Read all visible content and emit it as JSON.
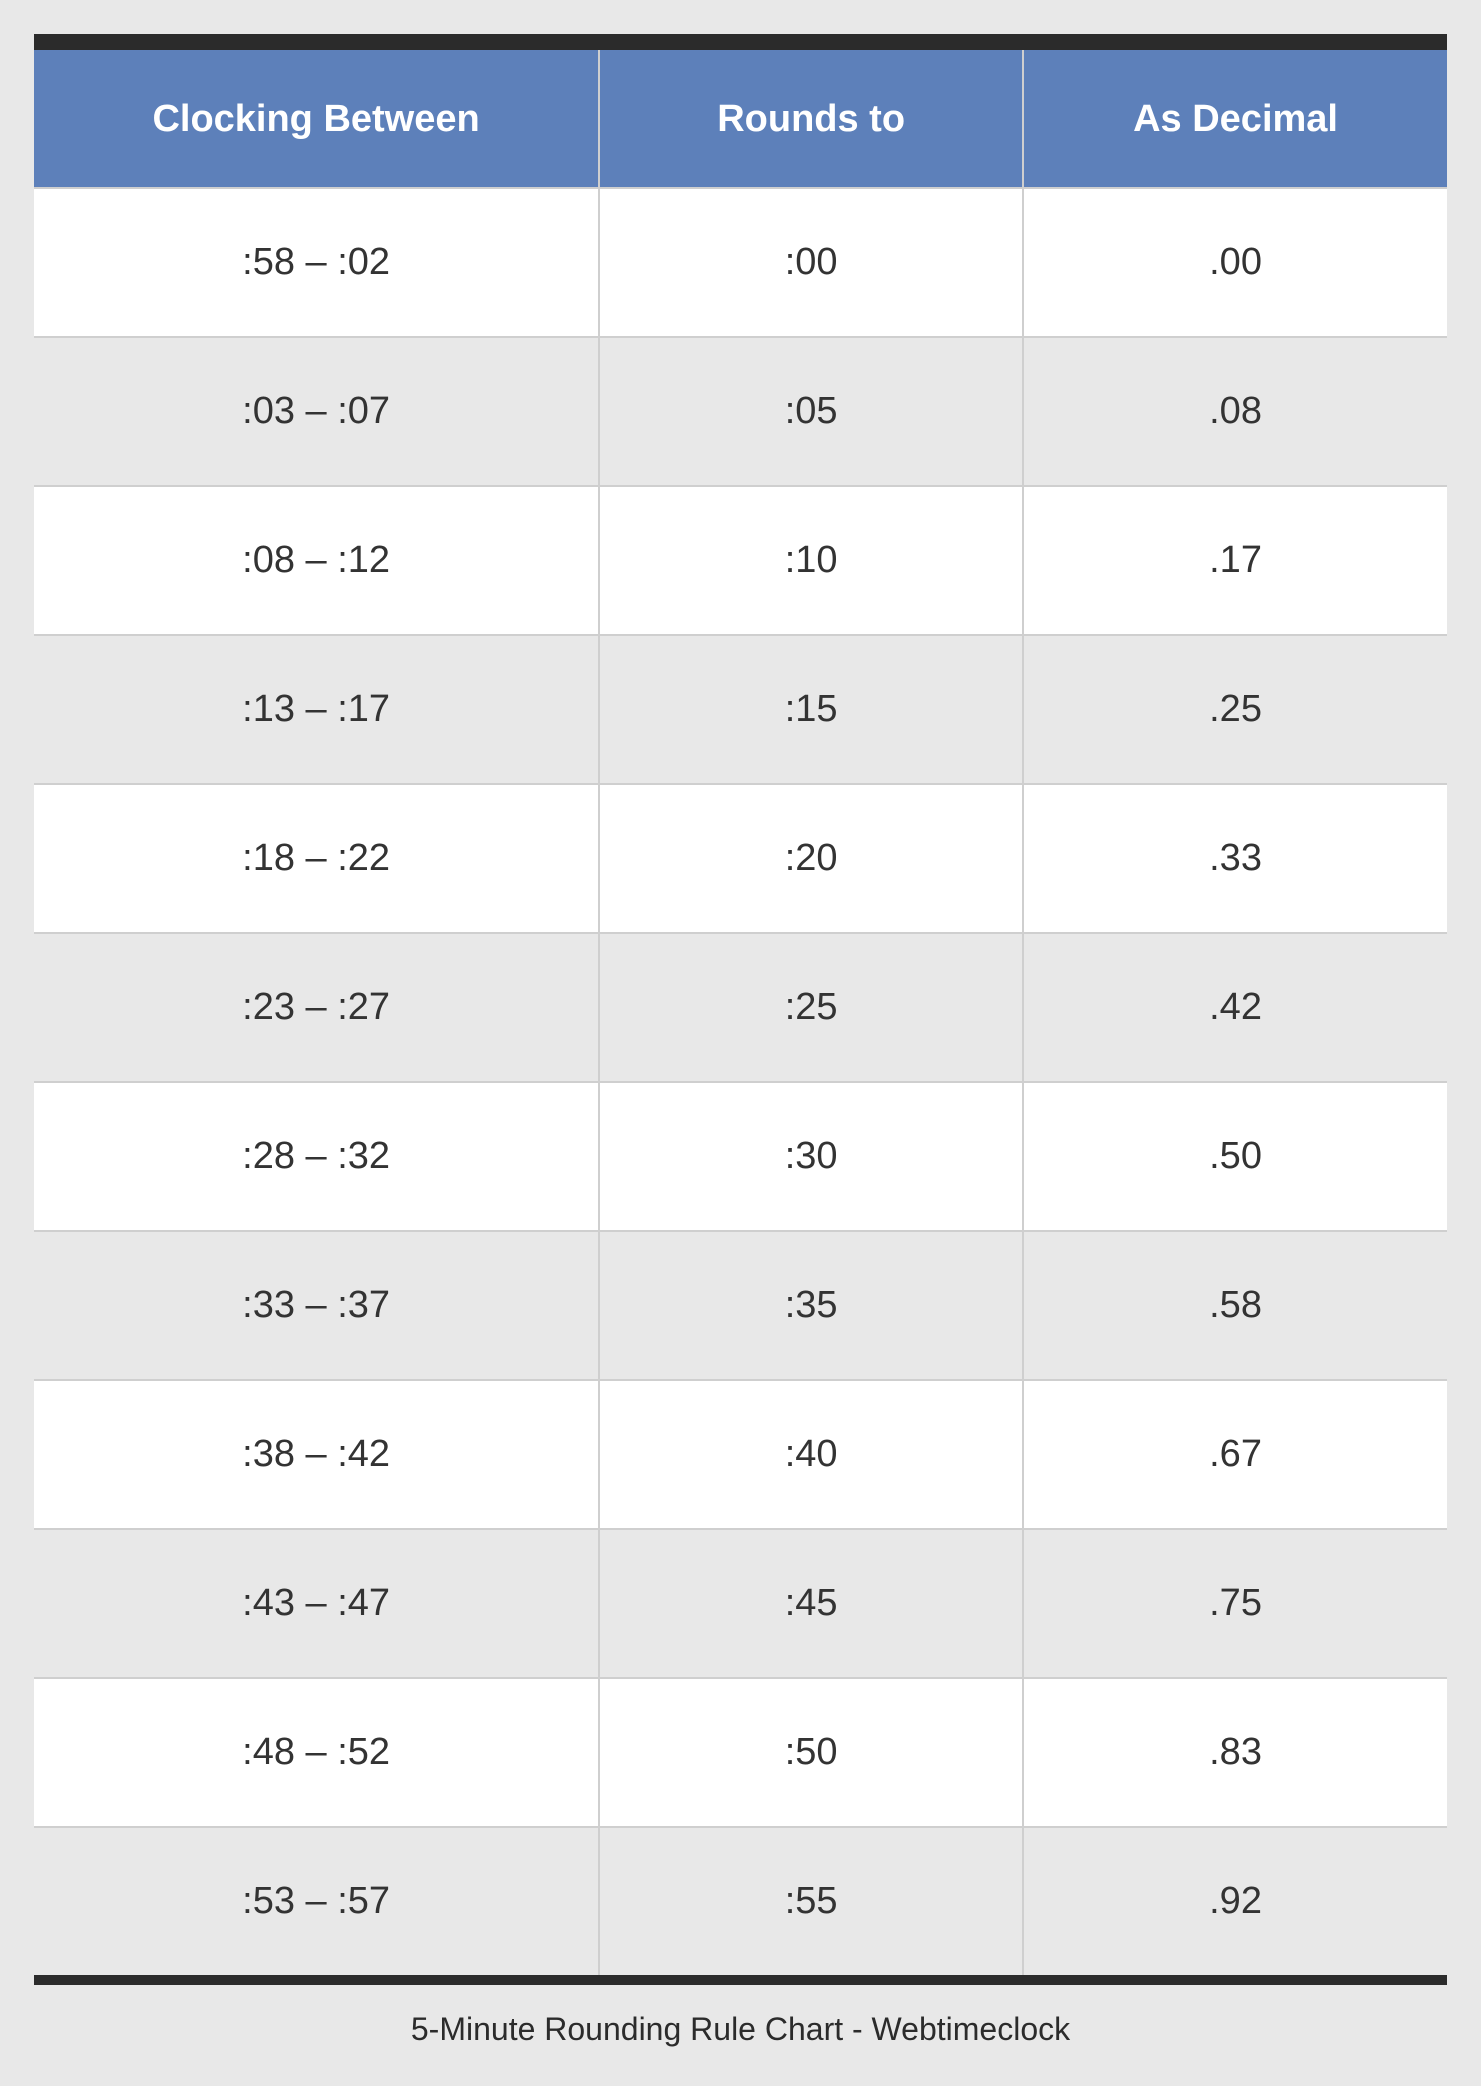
{
  "table": {
    "type": "table",
    "columns": [
      "Clocking Between",
      "Rounds to",
      "As Decimal"
    ],
    "column_widths_pct": [
      40,
      30,
      30
    ],
    "rows": [
      [
        ":58 – :02",
        ":00",
        ".00"
      ],
      [
        ":03 – :07",
        ":05",
        ".08"
      ],
      [
        ":08 – :12",
        ":10",
        ".17"
      ],
      [
        ":13 – :17",
        ":15",
        ".25"
      ],
      [
        ":18 – :22",
        ":20",
        ".33"
      ],
      [
        ":23 – :27",
        ":25",
        ".42"
      ],
      [
        ":28 – :32",
        ":30",
        ".50"
      ],
      [
        ":33 – :37",
        ":35",
        ".58"
      ],
      [
        ":38 – :42",
        ":40",
        ".67"
      ],
      [
        ":43 – :47",
        ":45",
        ".75"
      ],
      [
        ":48 – :52",
        ":50",
        ".83"
      ],
      [
        ":53 – :57",
        ":55",
        ".92"
      ]
    ],
    "header_bg": "#5d80ba",
    "header_text_color": "#ffffff",
    "header_fontsize_pt": 28,
    "body_fontsize_pt": 28,
    "body_text_color": "#333333",
    "row_bg_odd": "#ffffff",
    "row_bg_even": "#e8e8e8",
    "frame_bg": "#e8e8e8",
    "border_color": "#cfcfcf",
    "top_bar_color": "#2b2b2b",
    "bottom_bar_color": "#2b2b2b"
  },
  "caption": "5-Minute Rounding Rule Chart - Webtimeclock"
}
